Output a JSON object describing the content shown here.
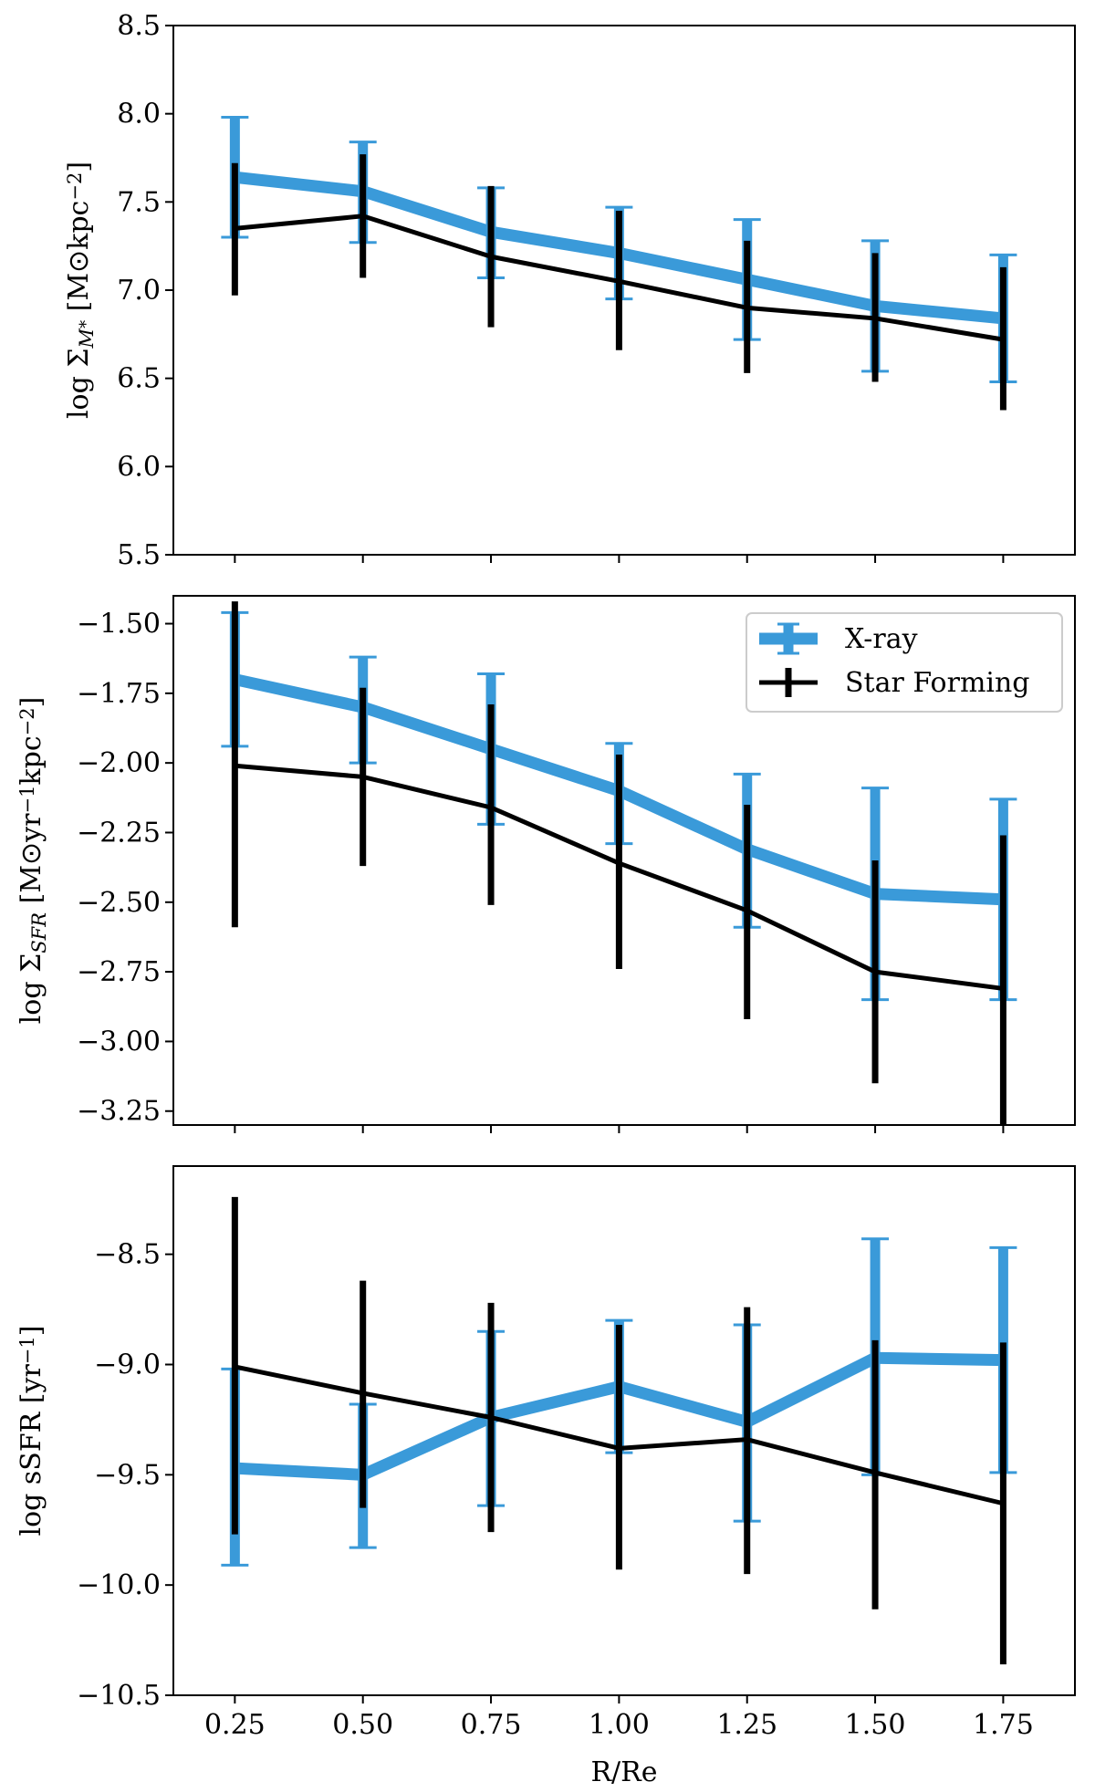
{
  "colors": {
    "xray": "#3a9ad9",
    "star_forming": "#000000",
    "axes": "#000000",
    "background": "#ffffff",
    "legend_border": "#cccccc"
  },
  "legend": {
    "placement": "top-right of middle panel",
    "entries": [
      "X-ray",
      "Star Forming"
    ]
  },
  "chart_data": [
    {
      "type": "line",
      "panel": "top",
      "ylabel": "log Σ_{M*} [M⊙kpc⁻²]",
      "ylabel_parts": {
        "prefix": "log Σ",
        "sub": "M",
        "subsup": "*",
        "mid": " [M",
        "sun": "⊙",
        "unit": "kpc",
        "sup": "−2",
        "suffix": "]"
      },
      "xlabel": "",
      "ylim": [
        5.5,
        8.5
      ],
      "yticks": [
        "5.5",
        "6.0",
        "6.5",
        "7.0",
        "7.5",
        "8.0",
        "8.5"
      ],
      "ytick_values": [
        5.5,
        6.0,
        6.5,
        7.0,
        7.5,
        8.0,
        8.5
      ],
      "xlim": [
        0.13,
        1.89
      ],
      "x": [
        0.25,
        0.5,
        0.75,
        1.0,
        1.25,
        1.5,
        1.75
      ],
      "series": [
        {
          "name": "X-ray",
          "values": [
            7.64,
            7.56,
            7.33,
            7.21,
            7.06,
            6.91,
            6.84
          ],
          "err_low": [
            7.3,
            7.27,
            7.07,
            6.95,
            6.72,
            6.54,
            6.48
          ],
          "err_high": [
            7.98,
            7.84,
            7.58,
            7.47,
            7.4,
            7.28,
            7.2
          ]
        },
        {
          "name": "Star Forming",
          "values": [
            7.35,
            7.42,
            7.19,
            7.05,
            6.9,
            6.84,
            6.72
          ],
          "err_low": [
            6.97,
            7.07,
            6.79,
            6.66,
            6.53,
            6.48,
            6.32
          ],
          "err_high": [
            7.72,
            7.77,
            7.59,
            7.45,
            7.28,
            7.21,
            7.13
          ]
        }
      ]
    },
    {
      "type": "line",
      "panel": "middle",
      "ylabel": "log Σ_SFR [M⊙yr⁻¹kpc⁻²]",
      "ylabel_parts": {
        "prefix": "log Σ",
        "sub": "SFR",
        "mid": " [M",
        "sun": "⊙",
        "unit": "yr",
        "sup": "−1",
        "unit2": "kpc",
        "sup2": "−2",
        "suffix": "]"
      },
      "xlabel": "",
      "ylim": [
        -3.3,
        -1.4
      ],
      "yticks": [
        "−3.25",
        "−3.00",
        "−2.75",
        "−2.50",
        "−2.25",
        "−2.00",
        "−1.75",
        "−1.50"
      ],
      "ytick_values": [
        -3.25,
        -3.0,
        -2.75,
        -2.5,
        -2.25,
        -2.0,
        -1.75,
        -1.5
      ],
      "xlim": [
        0.13,
        1.89
      ],
      "x": [
        0.25,
        0.5,
        0.75,
        1.0,
        1.25,
        1.5,
        1.75
      ],
      "series": [
        {
          "name": "X-ray",
          "values": [
            -1.7,
            -1.8,
            -1.95,
            -2.1,
            -2.31,
            -2.47,
            -2.49
          ],
          "err_low": [
            -1.94,
            -2.0,
            -2.22,
            -2.29,
            -2.59,
            -2.85,
            -2.85
          ],
          "err_high": [
            -1.46,
            -1.62,
            -1.68,
            -1.93,
            -2.04,
            -2.09,
            -2.13
          ]
        },
        {
          "name": "Star Forming",
          "values": [
            -2.01,
            -2.05,
            -2.16,
            -2.36,
            -2.53,
            -2.75,
            -2.81
          ],
          "err_low": [
            -2.59,
            -2.37,
            -2.51,
            -2.74,
            -2.92,
            -3.15,
            -3.3
          ],
          "err_high": [
            -1.42,
            -1.73,
            -1.79,
            -1.97,
            -2.15,
            -2.35,
            -2.26
          ]
        }
      ]
    },
    {
      "type": "line",
      "panel": "bottom",
      "ylabel": "log sSFR [yr⁻¹]",
      "ylabel_parts": {
        "prefix": "log sSFR [yr",
        "sup": "−1",
        "suffix": "]"
      },
      "xlabel": "R/Re",
      "ylim": [
        -10.5,
        -8.1
      ],
      "yticks": [
        "−10.5",
        "−10.0",
        "−9.5",
        "−9.0",
        "−8.5"
      ],
      "ytick_values": [
        -10.5,
        -10.0,
        -9.5,
        -9.0,
        -8.5
      ],
      "xlim": [
        0.13,
        1.89
      ],
      "x": [
        0.25,
        0.5,
        0.75,
        1.0,
        1.25,
        1.5,
        1.75
      ],
      "xticks": [
        "0.25",
        "0.50",
        "0.75",
        "1.00",
        "1.25",
        "1.50",
        "1.75"
      ],
      "series": [
        {
          "name": "X-ray",
          "values": [
            -9.47,
            -9.5,
            -9.24,
            -9.1,
            -9.26,
            -8.97,
            -8.98
          ],
          "err_low": [
            -9.91,
            -9.83,
            -9.64,
            -9.4,
            -9.71,
            -9.5,
            -9.49
          ],
          "err_high": [
            -9.02,
            -9.18,
            -8.85,
            -8.8,
            -8.82,
            -8.43,
            -8.47
          ]
        },
        {
          "name": "Star Forming",
          "values": [
            -9.01,
            -9.13,
            -9.24,
            -9.38,
            -9.34,
            -9.49,
            -9.63
          ],
          "err_low": [
            -9.77,
            -9.65,
            -9.76,
            -9.93,
            -9.95,
            -10.11,
            -10.36
          ],
          "err_high": [
            -8.24,
            -8.62,
            -8.72,
            -8.82,
            -8.74,
            -8.89,
            -8.9
          ]
        }
      ]
    }
  ]
}
